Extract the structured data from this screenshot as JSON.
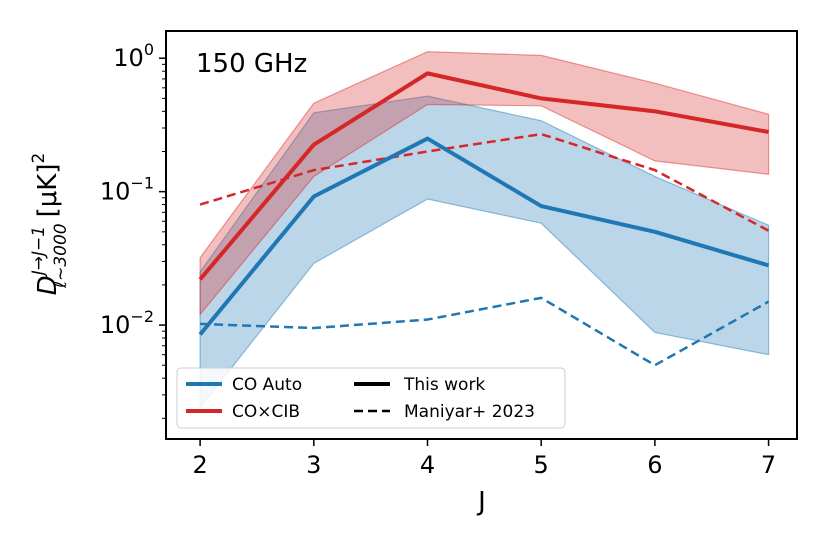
{
  "chart_data": {
    "type": "line",
    "annotation": "150 GHz",
    "xlabel": "J",
    "ylabel": {
      "base": "D",
      "superscript": "J→J−1",
      "subscript": "ℓ∼3000",
      "units": "[μK]",
      "units_power": "2"
    },
    "x_scale": "linear",
    "y_scale": "log",
    "xlim": [
      1.7,
      7.25
    ],
    "ylim": [
      0.0014,
      1.6
    ],
    "x_ticks": [
      2,
      3,
      4,
      5,
      6,
      7
    ],
    "x_tick_labels": [
      "2",
      "3",
      "4",
      "5",
      "6",
      "7"
    ],
    "y_ticks": [
      {
        "value": 1,
        "base": "10",
        "exp": "0"
      },
      {
        "value": 0.1,
        "base": "10",
        "exp": "−1"
      },
      {
        "value": 0.01,
        "base": "10",
        "exp": "−2"
      }
    ],
    "x": [
      2,
      3,
      4,
      5,
      6,
      7
    ],
    "series": [
      {
        "name": "CO Auto",
        "source": "This work",
        "color": "#1f77b4",
        "style": "solid",
        "values": [
          0.0085,
          0.092,
          0.25,
          0.078,
          0.05,
          0.028
        ],
        "band_low": [
          0.0024,
          0.029,
          0.088,
          0.058,
          0.0088,
          0.006
        ],
        "band_high": [
          0.025,
          0.39,
          0.52,
          0.34,
          0.13,
          0.056
        ]
      },
      {
        "name": "CO×CIB",
        "source": "This work",
        "color": "#d62728",
        "style": "solid",
        "values": [
          0.022,
          0.225,
          0.77,
          0.5,
          0.4,
          0.28
        ],
        "band_low": [
          0.012,
          0.13,
          0.45,
          0.44,
          0.17,
          0.135
        ],
        "band_high": [
          0.032,
          0.46,
          1.12,
          1.05,
          0.65,
          0.38
        ]
      },
      {
        "name": "CO Auto",
        "source": "Maniyar+ 2023",
        "color": "#1f77b4",
        "style": "dashed",
        "values": [
          0.0102,
          0.0095,
          0.011,
          0.016,
          0.005,
          0.015
        ]
      },
      {
        "name": "CO×CIB",
        "source": "Maniyar+ 2023",
        "color": "#d62728",
        "style": "dashed",
        "values": [
          0.08,
          0.145,
          0.2,
          0.27,
          0.145,
          0.051
        ]
      }
    ],
    "legend": {
      "location": "lower-left",
      "entries": [
        {
          "label": "CO Auto",
          "color": "#1f77b4",
          "style": "solid"
        },
        {
          "label": "This work",
          "color": "#000000",
          "style": "solid"
        },
        {
          "label": "CO×CIB",
          "color": "#d62728",
          "style": "solid"
        },
        {
          "label": "Maniyar+ 2023",
          "color": "#000000",
          "style": "dashed"
        }
      ]
    }
  }
}
